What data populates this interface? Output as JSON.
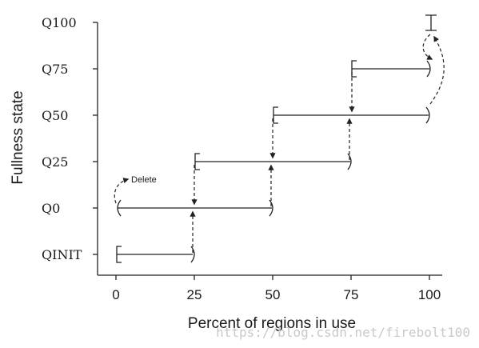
{
  "y_axis_title": "Fullness state",
  "x_axis_title": "Percent of regions in use",
  "y_ticks": [
    "QINIT",
    "Q0",
    "Q25",
    "Q50",
    "Q75",
    "Q100"
  ],
  "x_ticks": [
    "0",
    "25",
    "50",
    "75",
    "100"
  ],
  "delete_label": "Delete",
  "watermark": "https://blog.csdn.net/firebolt100",
  "states": [
    {
      "name": "QINIT",
      "from": 0,
      "to": 25
    },
    {
      "name": "Q0",
      "from": 0,
      "to": 50
    },
    {
      "name": "Q25",
      "from": 25,
      "to": 75
    },
    {
      "name": "Q50",
      "from": 50,
      "to": 100
    },
    {
      "name": "Q75",
      "from": 75,
      "to": 100
    },
    {
      "name": "Q100",
      "from": 100,
      "to": 100
    }
  ]
}
